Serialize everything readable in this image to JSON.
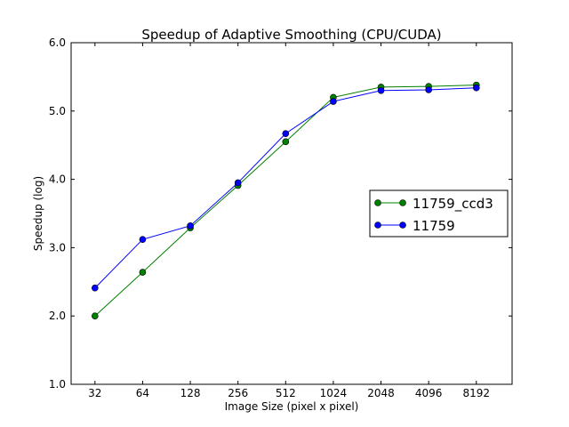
{
  "chart_data": {
    "type": "line",
    "title": "Speedup of Adaptive Smoothing (CPU/CUDA)",
    "xlabel": "Image Size (pixel x pixel)",
    "ylabel": "Speedup (log)",
    "categories": [
      "32",
      "64",
      "128",
      "256",
      "512",
      "1024",
      "2048",
      "4096",
      "8192"
    ],
    "ylim": [
      1.0,
      6.0
    ],
    "yticks": [
      "1.0",
      "2.0",
      "3.0",
      "4.0",
      "5.0",
      "6.0"
    ],
    "grid": false,
    "legend_position": "center-right",
    "series": [
      {
        "name": "11759_ccd3",
        "color": "#008000",
        "marker": "circle",
        "values": [
          2.0,
          2.64,
          3.29,
          3.91,
          4.55,
          5.2,
          5.35,
          5.36,
          5.38
        ]
      },
      {
        "name": "11759",
        "color": "#0000ff",
        "marker": "circle",
        "values": [
          2.41,
          3.12,
          3.32,
          3.95,
          4.67,
          5.14,
          5.3,
          5.31,
          5.34
        ]
      }
    ]
  }
}
